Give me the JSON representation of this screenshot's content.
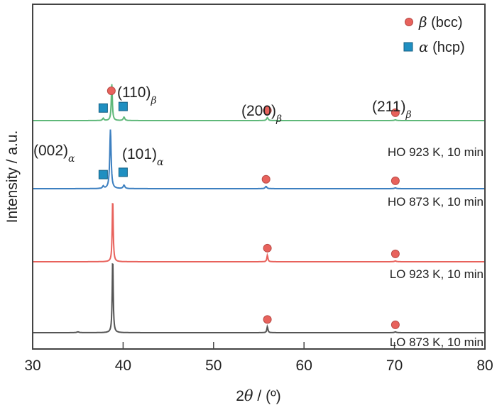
{
  "chart_data": {
    "type": "line",
    "title": "",
    "xlabel_prefix": "2",
    "xlabel_symbol": "θ",
    "xlabel_suffix": " / (º)",
    "ylabel": "Intensity / a.u.",
    "xlim": [
      30,
      80
    ],
    "xticks": [
      30,
      40,
      50,
      60,
      70,
      80
    ],
    "xtick_labels": [
      "30",
      "40",
      "50",
      "60",
      "70",
      "80"
    ],
    "yticks_shown": false,
    "grid": false,
    "legend_position": "top-right",
    "legend": [
      {
        "symbol": "β",
        "text": " (bcc)",
        "marker": "circle",
        "color": "#e8625c"
      },
      {
        "symbol": "α",
        "text": " (hcp)",
        "marker": "square",
        "color": "#1f8fc1"
      }
    ],
    "series": [
      {
        "name": "HO 923 K, 10 min",
        "color": "#5fb87a",
        "offset": 3,
        "peaks": [
          {
            "x": 37.8,
            "h": 0.06,
            "w": 0.18
          },
          {
            "x": 38.75,
            "h": 0.95,
            "w": 0.14
          },
          {
            "x": 40.1,
            "h": 0.09,
            "w": 0.2
          },
          {
            "x": 55.95,
            "h": 0.08,
            "w": 0.2
          },
          {
            "x": 70.1,
            "h": 0.02,
            "w": 0.25
          }
        ],
        "markers": [
          {
            "x": 38.7,
            "type": "beta",
            "above": 1.0
          },
          {
            "x": 37.8,
            "type": "alpha",
            "above": 0.18
          },
          {
            "x": 40.0,
            "type": "alpha",
            "above": 0.22
          },
          {
            "x": 55.95,
            "type": "beta",
            "above": 0.2
          },
          {
            "x": 70.1,
            "type": "beta",
            "above": 0.18
          }
        ]
      },
      {
        "name": "HO 873 K, 10 min",
        "color": "#3c7fc0",
        "offset": 2,
        "peaks": [
          {
            "x": 37.8,
            "h": 0.06,
            "w": 0.18
          },
          {
            "x": 38.6,
            "h": 1.55,
            "w": 0.18
          },
          {
            "x": 40.1,
            "h": 0.09,
            "w": 0.22
          },
          {
            "x": 55.8,
            "h": 0.06,
            "w": 0.22
          },
          {
            "x": 70.1,
            "h": 0.02,
            "w": 0.25
          }
        ],
        "markers": [
          {
            "x": 37.8,
            "type": "alpha",
            "above": 0.22
          },
          {
            "x": 40.0,
            "type": "alpha",
            "above": 0.28
          },
          {
            "x": 55.8,
            "type": "beta",
            "above": 0.22
          },
          {
            "x": 70.1,
            "type": "beta",
            "above": 0.16
          }
        ]
      },
      {
        "name": "LO 923 K, 10 min",
        "color": "#e8625c",
        "offset": 1,
        "peaks": [
          {
            "x": 38.85,
            "h": 1.65,
            "w": 0.13
          },
          {
            "x": 55.95,
            "h": 0.17,
            "w": 0.14
          },
          {
            "x": 70.1,
            "h": 0.02,
            "w": 0.25
          }
        ],
        "markers": [
          {
            "x": 55.95,
            "type": "beta",
            "above": 0.3
          },
          {
            "x": 70.1,
            "type": "beta",
            "above": 0.18
          }
        ]
      },
      {
        "name": "LO 873 K, 10 min",
        "color": "#555555",
        "offset": 0,
        "peaks": [
          {
            "x": 35.0,
            "h": 0.02,
            "w": 0.3
          },
          {
            "x": 38.85,
            "h": 1.95,
            "w": 0.13
          },
          {
            "x": 55.95,
            "h": 0.16,
            "w": 0.14
          },
          {
            "x": 70.1,
            "h": 0.02,
            "w": 0.25
          }
        ],
        "markers": [
          {
            "x": 55.95,
            "type": "beta",
            "above": 0.28
          },
          {
            "x": 70.1,
            "type": "beta",
            "above": 0.18
          }
        ]
      }
    ],
    "annotations": [
      {
        "text": "(110)",
        "sub": "β"
      },
      {
        "text": "(200)",
        "sub": "β"
      },
      {
        "text": "(211)",
        "sub": "β"
      },
      {
        "text": "(002)",
        "sub": "α"
      },
      {
        "text": "(101)",
        "sub": "α"
      }
    ]
  }
}
